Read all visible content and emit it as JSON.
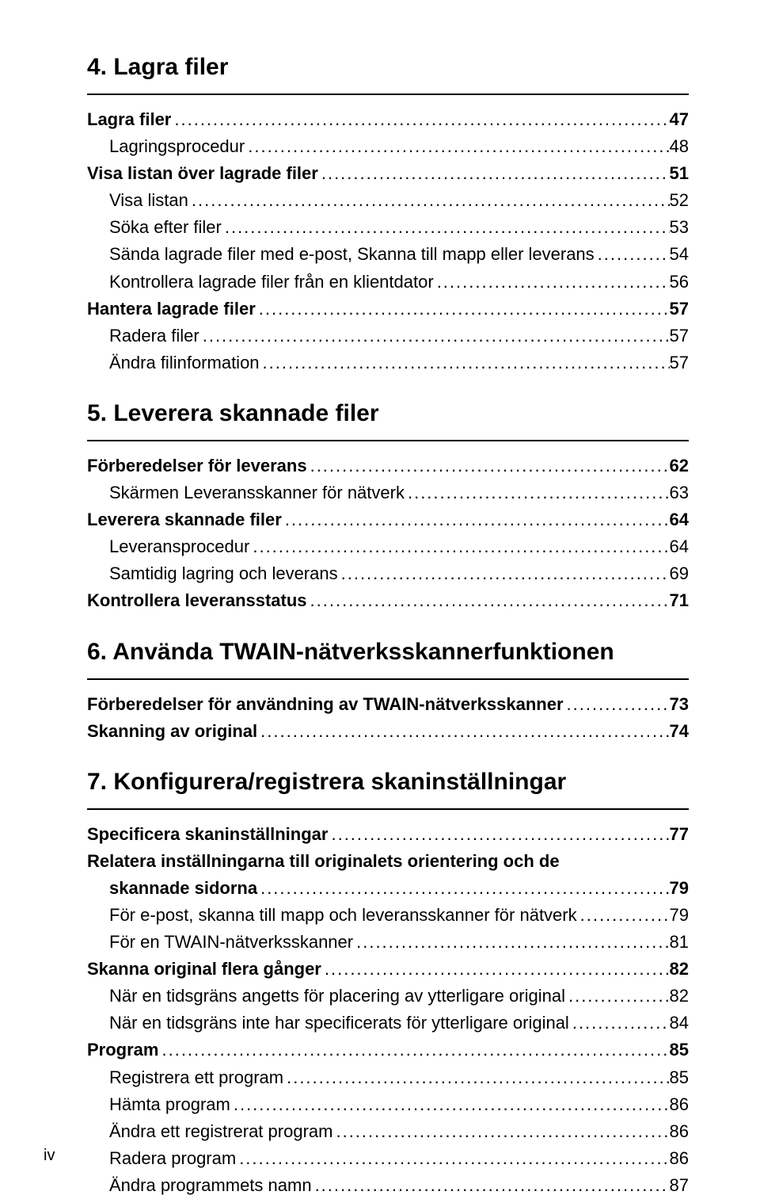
{
  "sections": [
    {
      "title": "4. Lagra filer",
      "entries": [
        {
          "label": "Lagra filer",
          "page": "47",
          "bold": true,
          "indent": 0
        },
        {
          "label": "Lagringsprocedur",
          "page": "48",
          "bold": false,
          "indent": 1
        },
        {
          "label": "Visa listan över lagrade filer",
          "page": "51",
          "bold": true,
          "indent": 0
        },
        {
          "label": "Visa listan",
          "page": "52",
          "bold": false,
          "indent": 1
        },
        {
          "label": "Söka efter filer",
          "page": "53",
          "bold": false,
          "indent": 1
        },
        {
          "label": "Sända lagrade filer med e-post, Skanna till mapp eller leverans",
          "page": "54",
          "bold": false,
          "indent": 1
        },
        {
          "label": "Kontrollera lagrade filer från en klientdator",
          "page": "56",
          "bold": false,
          "indent": 1
        },
        {
          "label": "Hantera lagrade filer",
          "page": "57",
          "bold": true,
          "indent": 0
        },
        {
          "label": "Radera filer",
          "page": "57",
          "bold": false,
          "indent": 1
        },
        {
          "label": "Ändra filinformation",
          "page": "57",
          "bold": false,
          "indent": 1
        }
      ]
    },
    {
      "title": "5. Leverera skannade filer",
      "entries": [
        {
          "label": "Förberedelser för leverans",
          "page": "62",
          "bold": true,
          "indent": 0
        },
        {
          "label": "Skärmen Leveransskanner för nätverk",
          "page": "63",
          "bold": false,
          "indent": 1
        },
        {
          "label": "Leverera skannade filer",
          "page": "64",
          "bold": true,
          "indent": 0
        },
        {
          "label": "Leveransprocedur",
          "page": "64",
          "bold": false,
          "indent": 1
        },
        {
          "label": "Samtidig lagring och leverans",
          "page": "69",
          "bold": false,
          "indent": 1
        },
        {
          "label": "Kontrollera leveransstatus",
          "page": "71",
          "bold": true,
          "indent": 0
        }
      ]
    },
    {
      "title": "6. Använda TWAIN-nätverksskannerfunktionen",
      "entries": [
        {
          "label": "Förberedelser för användning av TWAIN-nätverksskanner",
          "page": "73",
          "bold": true,
          "indent": 0
        },
        {
          "label": "Skanning av original",
          "page": "74",
          "bold": true,
          "indent": 0
        }
      ]
    },
    {
      "title": "7. Konfigurera/registrera skaninställningar",
      "entries": [
        {
          "label": "Specificera skaninställningar",
          "page": "77",
          "bold": true,
          "indent": 0
        },
        {
          "label": "Relatera inställningarna till originalets orientering och de",
          "page": "",
          "bold": true,
          "indent": 0,
          "nodots": true
        },
        {
          "label": "skannade sidorna",
          "page": "79",
          "bold": true,
          "indent": 1
        },
        {
          "label": "För e-post, skanna till mapp och leveransskanner för nätverk",
          "page": "79",
          "bold": false,
          "indent": 1
        },
        {
          "label": "För en TWAIN-nätverksskanner",
          "page": "81",
          "bold": false,
          "indent": 1
        },
        {
          "label": "Skanna original flera gånger",
          "page": "82",
          "bold": true,
          "indent": 0
        },
        {
          "label": "När en tidsgräns angetts för placering av ytterligare original",
          "page": "82",
          "bold": false,
          "indent": 1
        },
        {
          "label": "När en tidsgräns inte har specificerats för ytterligare original",
          "page": "84",
          "bold": false,
          "indent": 1
        },
        {
          "label": "Program",
          "page": "85",
          "bold": true,
          "indent": 0
        },
        {
          "label": "Registrera ett program",
          "page": "85",
          "bold": false,
          "indent": 1
        },
        {
          "label": "Hämta program",
          "page": "86",
          "bold": false,
          "indent": 1
        },
        {
          "label": "Ändra ett registrerat program",
          "page": "86",
          "bold": false,
          "indent": 1
        },
        {
          "label": "Radera program",
          "page": "86",
          "bold": false,
          "indent": 1
        },
        {
          "label": "Ändra programmets namn",
          "page": "87",
          "bold": false,
          "indent": 1
        }
      ]
    }
  ],
  "pageNumber": "iv",
  "style": {
    "titleFontSize": 30,
    "entryFontSize": 22,
    "textColor": "#000000",
    "backgroundColor": "#ffffff"
  }
}
